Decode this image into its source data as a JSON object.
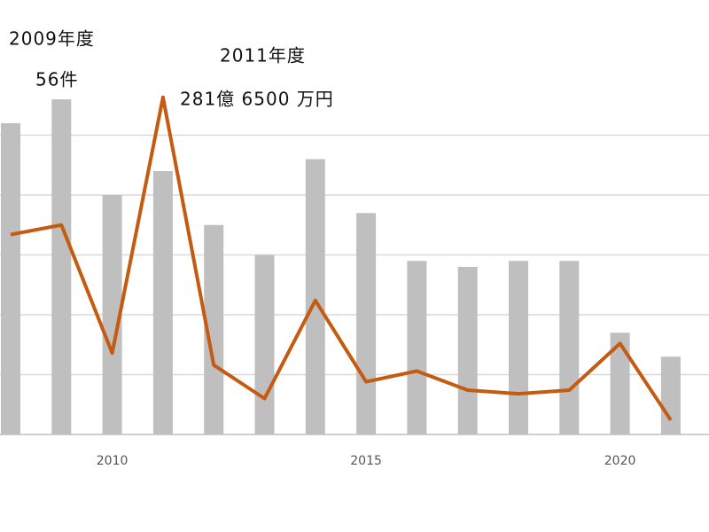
{
  "chart_data": {
    "type": "bar_line",
    "categories": [
      null,
      null,
      "2010",
      null,
      null,
      null,
      null,
      "2015",
      null,
      null,
      null,
      null,
      "2020",
      null
    ],
    "series": [
      {
        "type": "bar",
        "color": "#bfbfbf",
        "values": [
          52,
          56,
          40,
          44,
          35,
          30,
          46,
          37,
          29,
          28,
          29,
          29,
          17,
          13
        ]
      },
      {
        "type": "line",
        "axis": "y2",
        "color": "#c55a11",
        "values": [
          167,
          175,
          68,
          281.65,
          58,
          30,
          112,
          44,
          53,
          37,
          34,
          37,
          76,
          12
        ]
      }
    ],
    "ylim": [
      0,
      60
    ],
    "yticks": [
      0,
      10,
      20,
      30,
      40,
      50
    ],
    "y2lim": [
      0,
      300
    ],
    "grid": true,
    "annotations": [
      "2009年度",
      "56件",
      "2011年度",
      "281億 6500 万円"
    ]
  }
}
